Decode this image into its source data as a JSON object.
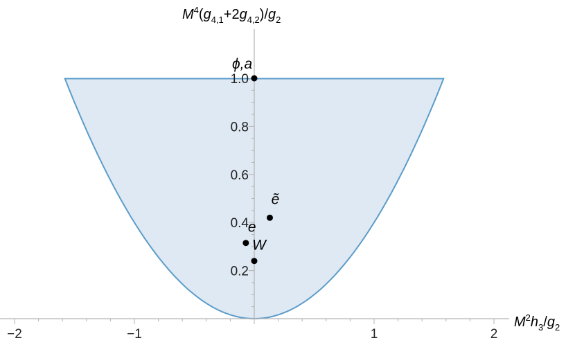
{
  "chart_data": {
    "type": "area",
    "xlabel": {
      "base": "M",
      "sup": "2",
      "rest": "h",
      "sub": "3",
      "tail": "/g",
      "sub2": "2"
    },
    "ylabel": "M^4(g_{4,1}+2g_{4,2})/g_2",
    "xlim": [
      -2.0,
      2.0
    ],
    "ylim": [
      0.0,
      1.0
    ],
    "x_ticks": [
      {
        "value": -2,
        "label": "−2"
      },
      {
        "value": -1,
        "label": "−1"
      },
      {
        "value": 1,
        "label": "1"
      },
      {
        "value": 2,
        "label": "2"
      }
    ],
    "y_ticks": [
      {
        "value": 0.2,
        "label": "0.2"
      },
      {
        "value": 0.4,
        "label": "0.4"
      },
      {
        "value": 0.6,
        "label": "0.6"
      },
      {
        "value": 0.8,
        "label": "0.8"
      },
      {
        "value": 1.0,
        "label": "1.0"
      }
    ],
    "region": {
      "boundary": "y = 0.4 * x^2",
      "x_range": [
        -1.58,
        1.58
      ],
      "y_top": 1.0,
      "fill": "#dfe9f3",
      "stroke": "#5b9cc9"
    },
    "points": [
      {
        "label": "ϕ,a",
        "x": 0.0,
        "y": 1.0
      },
      {
        "label": "ẽ",
        "x": 0.13,
        "y": 0.42
      },
      {
        "label": "e",
        "x": -0.07,
        "y": 0.315
      },
      {
        "label": "W",
        "x": 0.0,
        "y": 0.24
      }
    ],
    "axis_color": "#b3b3b3",
    "point_color": "#000000"
  }
}
